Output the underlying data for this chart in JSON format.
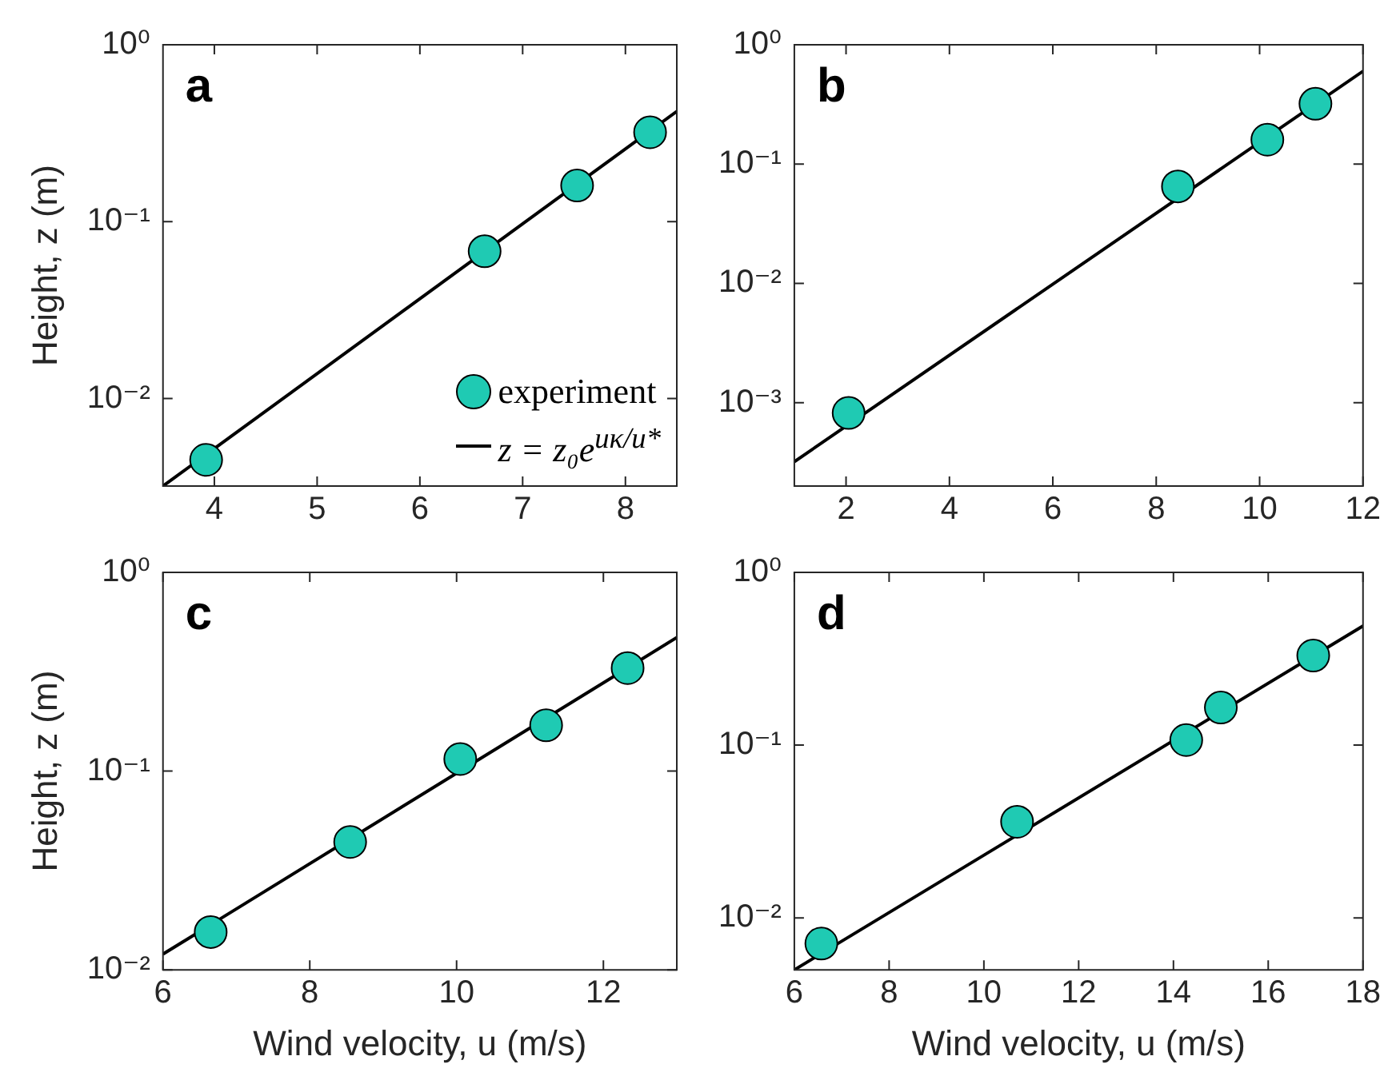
{
  "chart_data": [
    {
      "type": "scatter",
      "ylabel": "Height, z (m)",
      "annotations": [
        "a"
      ],
      "log": "y",
      "grid": false,
      "legend": "bottom right",
      "xlim": [
        3.5,
        8.5
      ],
      "xticks": [
        4,
        5,
        6,
        7,
        8
      ],
      "ylim": [
        0.0032,
        1
      ],
      "yticks": [
        {
          "value": 0.01,
          "label": "10⁻²"
        },
        {
          "value": 0.1,
          "label": "10⁻¹"
        },
        {
          "value": 1,
          "label": "10⁰"
        }
      ],
      "series": [
        {
          "name": "experiment",
          "marker": "circle",
          "color": "#1fcab3",
          "x": [
            3.92,
            6.63,
            7.53,
            8.24
          ],
          "values": [
            0.0045,
            0.068,
            0.16,
            0.32
          ]
        },
        {
          "name": "z = z₀e$^{uκ/u*}$",
          "type": "line",
          "marker": "none",
          "line_style": "solid",
          "color": "#000000",
          "x": [
            3.5,
            8.5
          ],
          "values": [
            0.0032,
            0.42
          ]
        }
      ]
    },
    {
      "type": "scatter",
      "annotations": [
        "b"
      ],
      "log": "y",
      "grid": false,
      "xlim": [
        1,
        12
      ],
      "xticks": [
        2,
        4,
        6,
        8,
        10,
        12
      ],
      "ylim": [
        0.0002,
        1
      ],
      "yticks": [
        {
          "value": 0.001,
          "label": "10⁻³"
        },
        {
          "value": 0.01,
          "label": "10⁻²"
        },
        {
          "value": 0.1,
          "label": "10⁻¹"
        },
        {
          "value": 1,
          "label": "10⁰"
        }
      ],
      "series": [
        {
          "marker": "circle",
          "color": "#1fcab3",
          "x": [
            2.05,
            8.42,
            10.15,
            11.08
          ],
          "values": [
            0.00082,
            0.065,
            0.16,
            0.32
          ]
        },
        {
          "type": "line",
          "marker": "none",
          "line_style": "solid",
          "color": "#000000",
          "x": [
            1,
            12
          ],
          "values": [
            0.00032,
            0.6
          ]
        }
      ]
    },
    {
      "type": "scatter",
      "xlabel": "Wind velocity, u (m/s)",
      "ylabel": "Height, z (m)",
      "annotations": [
        "c"
      ],
      "log": "y",
      "grid": false,
      "xlim": [
        6,
        13
      ],
      "xticks": [
        6,
        8,
        10,
        12
      ],
      "ylim": [
        0.01,
        1
      ],
      "yticks": [
        {
          "value": 0.01,
          "label": "10⁻²"
        },
        {
          "value": 0.1,
          "label": "10⁻¹"
        },
        {
          "value": 1,
          "label": "10⁰"
        }
      ],
      "series": [
        {
          "marker": "circle",
          "color": "#1fcab3",
          "x": [
            6.65,
            8.55,
            10.05,
            11.22,
            12.33
          ],
          "values": [
            0.0155,
            0.044,
            0.115,
            0.17,
            0.33
          ]
        },
        {
          "type": "line",
          "marker": "none",
          "line_style": "solid",
          "color": "#000000",
          "x": [
            6,
            13
          ],
          "values": [
            0.012,
            0.47
          ]
        }
      ]
    },
    {
      "type": "scatter",
      "xlabel": "Wind velocity, u (m/s)",
      "annotations": [
        "d"
      ],
      "log": "y",
      "grid": false,
      "xlim": [
        6,
        18
      ],
      "xticks": [
        6,
        8,
        10,
        12,
        14,
        16,
        18
      ],
      "ylim": [
        0.005,
        1
      ],
      "yticks": [
        {
          "value": 0.01,
          "label": "10⁻²"
        },
        {
          "value": 0.1,
          "label": "10⁻¹"
        },
        {
          "value": 1,
          "label": "10⁰"
        }
      ],
      "series": [
        {
          "marker": "circle",
          "color": "#1fcab3",
          "x": [
            6.57,
            10.7,
            14.27,
            15.0,
            16.95
          ],
          "values": [
            0.0071,
            0.036,
            0.107,
            0.165,
            0.33
          ]
        },
        {
          "type": "line",
          "marker": "none",
          "line_style": "solid",
          "color": "#000000",
          "x": [
            6,
            18
          ],
          "values": [
            0.005,
            0.49
          ]
        }
      ]
    }
  ]
}
